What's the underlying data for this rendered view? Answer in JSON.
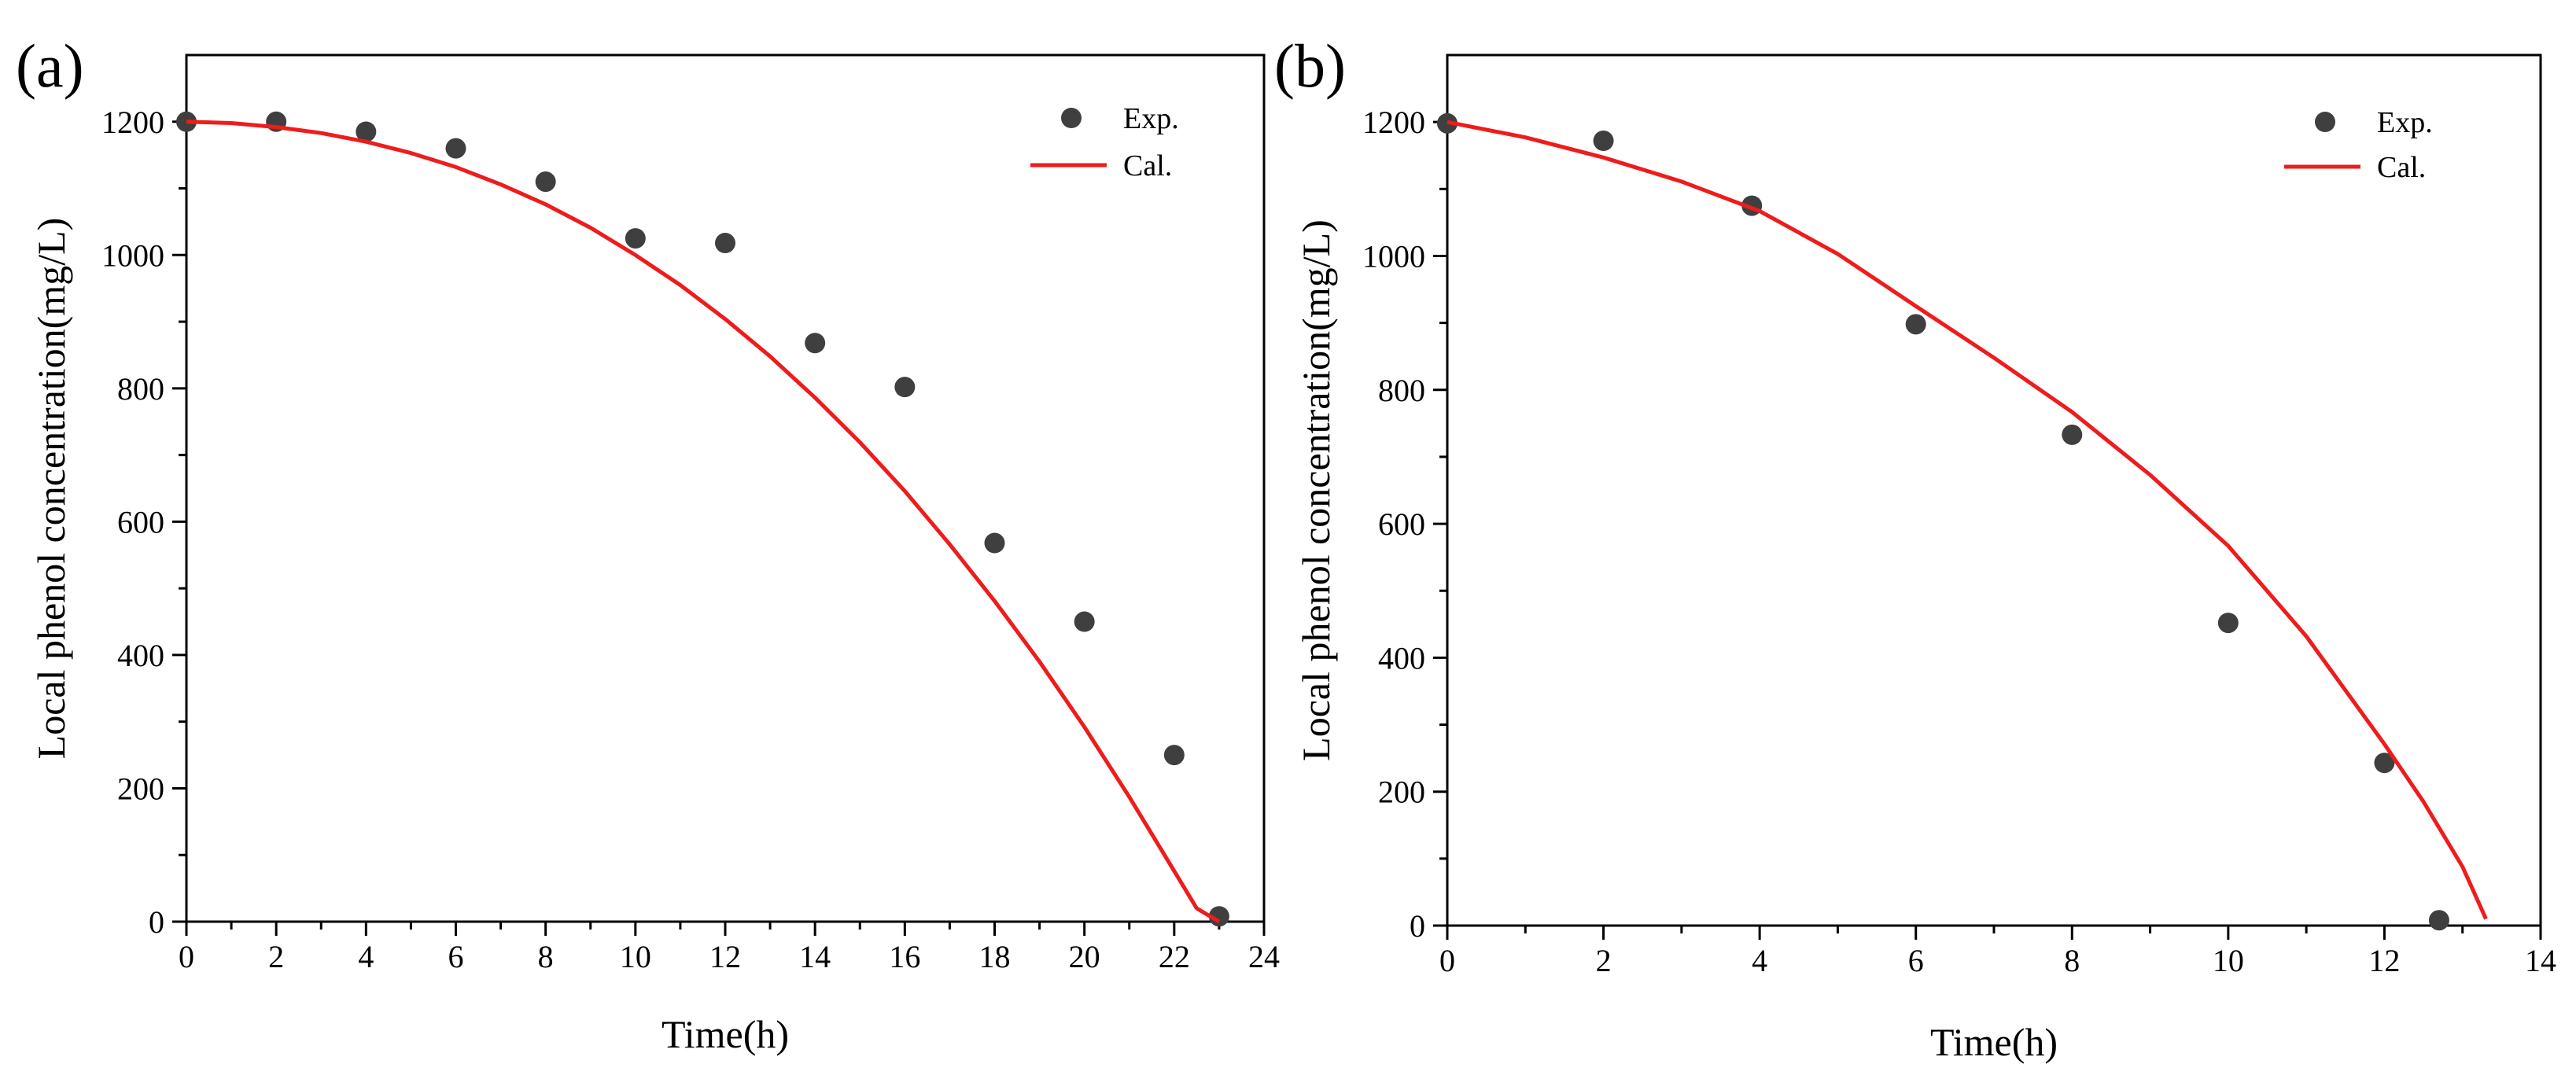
{
  "colors": {
    "exp_marker": "#3f3f3f",
    "cal_line": "#ee1c1c",
    "axis": "#000000"
  },
  "chart_data": [
    {
      "panel_label": "(a)",
      "type": "scatter",
      "xlabel": "Time(h)",
      "ylabel": "Local phenol concentration(mg/L)",
      "xlim": [
        0,
        24
      ],
      "ylim": [
        0,
        1300
      ],
      "xticks": [
        0,
        2,
        4,
        6,
        8,
        10,
        12,
        14,
        16,
        18,
        20,
        22,
        24
      ],
      "yticks": [
        0,
        200,
        400,
        600,
        800,
        1000,
        1200
      ],
      "legend": {
        "position": "top-right",
        "entries": [
          "Exp.",
          "Cal."
        ]
      },
      "series": [
        {
          "name": "Exp.",
          "kind": "scatter",
          "x": [
            0,
            2,
            4,
            6,
            8,
            10,
            12,
            14,
            16,
            18,
            20,
            22,
            23
          ],
          "y": [
            1200,
            1200,
            1185,
            1160,
            1110,
            1025,
            1018,
            868,
            802,
            568,
            450,
            250,
            8
          ]
        },
        {
          "name": "Cal.",
          "kind": "line",
          "x": [
            0,
            1,
            2,
            3,
            4,
            5,
            6,
            7,
            8,
            9,
            10,
            11,
            12,
            13,
            14,
            15,
            16,
            17,
            18,
            19,
            20,
            21,
            22,
            22.5,
            23
          ],
          "y": [
            1200,
            1198,
            1192,
            1183,
            1170,
            1153,
            1132,
            1106,
            1076,
            1041,
            1000,
            955,
            904,
            848,
            786,
            719,
            646,
            566,
            481,
            390,
            292,
            187,
            76,
            20,
            0
          ]
        }
      ]
    },
    {
      "panel_label": "(b)",
      "type": "scatter",
      "xlabel": "Time(h)",
      "ylabel": "Local phenol concentration(mg/L)",
      "xlim": [
        0,
        14
      ],
      "ylim": [
        0,
        1300
      ],
      "xticks": [
        0,
        2,
        4,
        6,
        8,
        10,
        12,
        14
      ],
      "yticks": [
        0,
        200,
        400,
        600,
        800,
        1000,
        1200
      ],
      "legend": {
        "position": "top-right",
        "entries": [
          "Exp.",
          "Cal."
        ]
      },
      "series": [
        {
          "name": "Exp.",
          "kind": "scatter",
          "x": [
            0,
            2,
            3.9,
            6,
            8,
            10,
            12,
            12.7
          ],
          "y": [
            1198,
            1172,
            1075,
            898,
            733,
            452,
            243,
            8
          ]
        },
        {
          "name": "Cal.",
          "kind": "line",
          "x": [
            0,
            1,
            2,
            3,
            4,
            5,
            6,
            7,
            8,
            9,
            10,
            11,
            12,
            12.5,
            13,
            13.3
          ],
          "y": [
            1200,
            1177,
            1147,
            1111,
            1067,
            1003,
            925,
            848,
            767,
            673,
            567,
            432,
            271,
            185,
            88,
            10
          ]
        }
      ]
    }
  ]
}
